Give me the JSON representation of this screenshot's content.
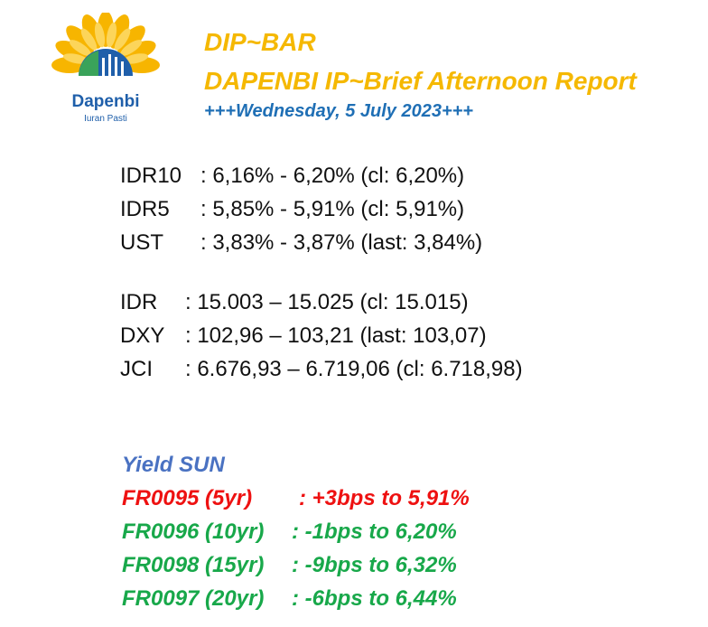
{
  "logo": {
    "brand": "Dapenbi",
    "tagline": "Iuran Pasti",
    "colors": {
      "petal": "#f5b800",
      "blue": "#1f5faa",
      "green": "#3aa35a"
    }
  },
  "header": {
    "title": "DIP~BAR",
    "subtitle": "DAPENBI IP~Brief Afternoon Report",
    "date": "+++Wednesday, 5 July 2023+++"
  },
  "rates": [
    {
      "label": "IDR10",
      "value": ": 6,16% - 6,20% (cl: 6,20%)"
    },
    {
      "label": "IDR5",
      "value": ": 5,85% - 5,91% (cl: 5,91%)"
    },
    {
      "label": "UST",
      "value": ": 3,83% - 3,87% (last: 3,84%)"
    }
  ],
  "markets": [
    {
      "label": "IDR",
      "value": ": 15.003 – 15.025 (cl: 15.015)"
    },
    {
      "label": "DXY",
      "value": ": 102,96 – 103,21 (last: 103,07)"
    },
    {
      "label": "JCI",
      "value": ": 6.676,93 – 6.719,06 (cl: 6.718,98)"
    }
  ],
  "yield": {
    "title": "Yield SUN",
    "items": [
      {
        "code": "FR0095 (5yr)",
        "change": ": +3bps to 5,91%",
        "direction": "up",
        "color": "#ee1111"
      },
      {
        "code": "FR0096 (10yr)",
        "change": ": -1bps to 6,20%",
        "direction": "down",
        "color": "#18a84a"
      },
      {
        "code": "FR0098 (15yr)",
        "change": ": -9bps to 6,32%",
        "direction": "down",
        "color": "#18a84a"
      },
      {
        "code": "FR0097 (20yr)",
        "change": ": -6bps to 6,44%",
        "direction": "down",
        "color": "#18a84a"
      }
    ]
  }
}
